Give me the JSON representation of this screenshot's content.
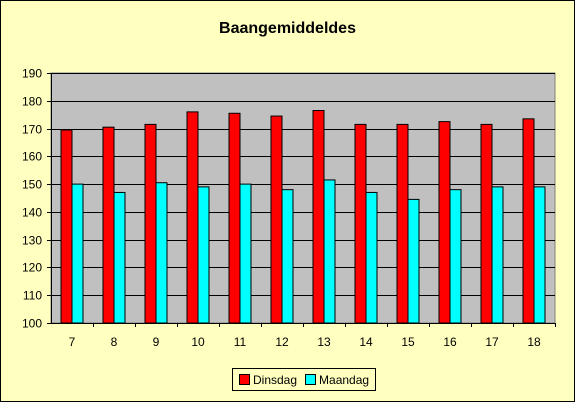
{
  "chart_data": {
    "type": "bar",
    "title": "Baangemiddeldes",
    "xlabel": "",
    "ylabel": "",
    "categories": [
      "7",
      "8",
      "9",
      "10",
      "11",
      "12",
      "13",
      "14",
      "15",
      "16",
      "17",
      "18"
    ],
    "series": [
      {
        "name": "Dinsdag",
        "color": "#ff0000",
        "values": [
          169.5,
          170.5,
          171.5,
          176,
          175.5,
          174.5,
          176.5,
          171.5,
          171.5,
          172.5,
          171.5,
          173.5
        ]
      },
      {
        "name": "Maandag",
        "color": "#00ffff",
        "values": [
          150,
          147,
          150.5,
          149,
          150,
          148,
          151.5,
          147,
          144.5,
          148,
          149,
          149
        ]
      }
    ],
    "ylim": [
      100,
      190
    ],
    "yticks": [
      "100",
      "110",
      "120",
      "130",
      "140",
      "150",
      "160",
      "170",
      "180",
      "190"
    ],
    "grid": true,
    "legend_position": "bottom",
    "plot_background": "#c0c0c0",
    "chart_background": "#ffffc0"
  }
}
